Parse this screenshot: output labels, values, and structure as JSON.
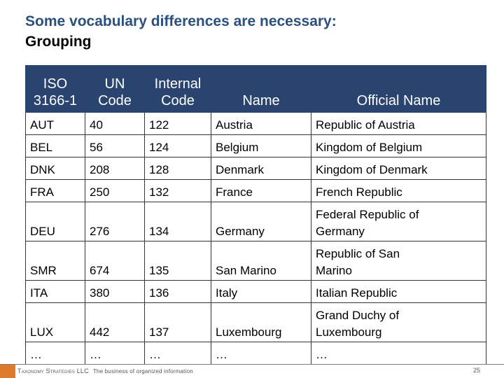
{
  "slide": {
    "title_line1": "Some vocabulary differences are necessary:",
    "title_line2": "Grouping"
  },
  "table": {
    "headers": [
      {
        "lines": [
          "ISO",
          "3166-1"
        ]
      },
      {
        "lines": [
          "UN",
          "Code"
        ]
      },
      {
        "lines": [
          "Internal",
          "Code"
        ]
      },
      {
        "lines": [
          "Name"
        ]
      },
      {
        "lines": [
          "Official Name"
        ]
      }
    ],
    "rows": [
      {
        "iso": "AUT",
        "un": "40",
        "internal": "122",
        "name": "Austria",
        "official": [
          "Republic of Austria"
        ]
      },
      {
        "iso": "BEL",
        "un": "56",
        "internal": "124",
        "name": "Belgium",
        "official": [
          "Kingdom of Belgium"
        ]
      },
      {
        "iso": "DNK",
        "un": "208",
        "internal": "128",
        "name": "Denmark",
        "official": [
          "Kingdom of Denmark"
        ]
      },
      {
        "iso": "FRA",
        "un": "250",
        "internal": "132",
        "name": "France",
        "official": [
          "French Republic"
        ]
      },
      {
        "iso": "DEU",
        "un": "276",
        "internal": "134",
        "name": "Germany",
        "official": [
          "Federal Republic of",
          "Germany"
        ]
      },
      {
        "iso": "SMR",
        "un": "674",
        "internal": "135",
        "name": "San Marino",
        "official": [
          "Republic of San",
          "Marino"
        ]
      },
      {
        "iso": "ITA",
        "un": "380",
        "internal": "136",
        "name": "Italy",
        "official": [
          "Italian Republic"
        ]
      },
      {
        "iso": "LUX",
        "un": "442",
        "internal": "137",
        "name": "Luxembourg",
        "official": [
          "Grand Duchy of",
          "Luxembourg"
        ]
      },
      {
        "iso": "…",
        "un": "…",
        "internal": "…",
        "name": "…",
        "official": [
          "…"
        ]
      }
    ]
  },
  "footer": {
    "company": "Taxonomy Strategies LLC",
    "tagline": "The business of organized information",
    "page_number": "25"
  },
  "colors": {
    "title": "#2b4f7e",
    "header_bg": "#29446e",
    "header_text": "#ffffff",
    "logo": "#e07a2b"
  }
}
